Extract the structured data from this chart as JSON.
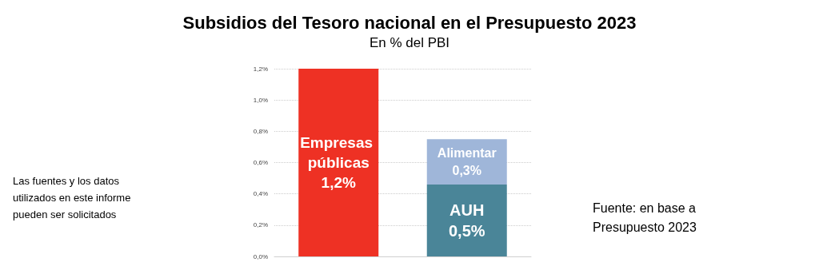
{
  "chart_data": {
    "type": "bar",
    "title": "Subsidios del Tesoro nacional en el Presupuesto 2023",
    "subtitle": "En % del PBI",
    "categories": [
      null,
      null
    ],
    "stacked": true,
    "series": [
      {
        "name": "Empresas públicas",
        "color": "#ee3124",
        "values": [
          1.2,
          null
        ],
        "value_labels": [
          "1,2%",
          null
        ]
      },
      {
        "name": "AUH",
        "color": "#4a8598",
        "values": [
          null,
          0.46
        ],
        "value_labels": [
          null,
          "0,5%"
        ]
      },
      {
        "name": "Alimentar",
        "color": "#9fb6d9",
        "values": [
          null,
          0.29
        ],
        "value_labels": [
          null,
          "0,3%"
        ]
      }
    ],
    "ylim": [
      0,
      1.2
    ],
    "yticks": [
      {
        "value": 0,
        "label": "0,0%"
      },
      {
        "value": 0.2,
        "label": "0,2%"
      },
      {
        "value": 0.4,
        "label": "0,4%"
      },
      {
        "value": 0.6,
        "label": "0,6%"
      },
      {
        "value": 0.8,
        "label": "0,8%"
      },
      {
        "value": 1.0,
        "label": "1,0%"
      },
      {
        "value": 1.2,
        "label": "1,2%"
      }
    ],
    "grid": "y",
    "legend": false,
    "annotations": [
      "Las fuentes y los datos utilizados en este informe pueden ser solicitados",
      "Fuente: en base a Presupuesto 2023"
    ]
  }
}
